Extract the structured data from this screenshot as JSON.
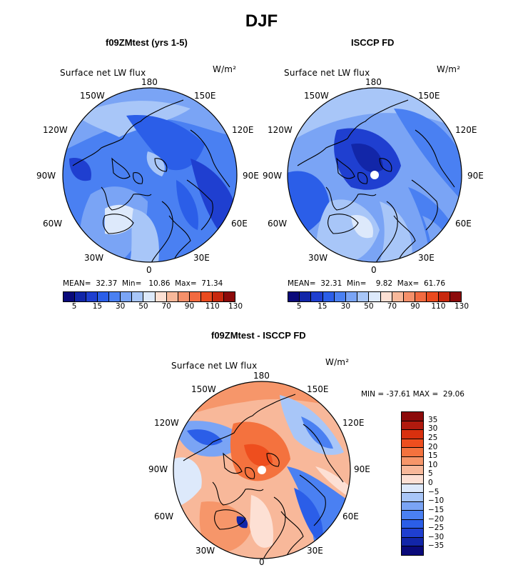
{
  "title": "DJF",
  "units": "W/m²",
  "variable": "Surface net LW flux",
  "lon_labels": {
    "top": "180",
    "bottom": "0",
    "left": [
      "150W",
      "120W",
      "90W",
      "60W",
      "30W"
    ],
    "right": [
      "150E",
      "120E",
      "90E",
      "60E",
      "30E"
    ]
  },
  "panels": {
    "model": {
      "title": "f09ZMtest (yrs 1-5)",
      "stats": "MEAN=  32.37  Min=   10.86  Max=  71.34",
      "colorbar_labels": [
        "5",
        "15",
        "30",
        "50",
        "70",
        "90",
        "110",
        "130"
      ]
    },
    "obs": {
      "title": "ISCCP FD",
      "stats": "MEAN=  32.31  Min=    9.82  Max=  61.76",
      "colorbar_labels": [
        "5",
        "15",
        "30",
        "50",
        "70",
        "90",
        "110",
        "130"
      ]
    },
    "diff": {
      "title": "f09ZMtest - ISCCP FD",
      "stats": "MIN = -37.61 MAX =  29.06",
      "colorbar_labels": [
        "35",
        "30",
        "25",
        "20",
        "15",
        "10",
        "5",
        "0",
        "−5",
        "−10",
        "−15",
        "−20",
        "−25",
        "−30",
        "−35"
      ]
    }
  },
  "colors": {
    "abs_scale": [
      "#0a0a7a",
      "#1226a8",
      "#1f3fd0",
      "#2b5ee8",
      "#4a80f2",
      "#7aa4f5",
      "#a8c6f8",
      "#dde9fb",
      "#fde0d4",
      "#f8b89a",
      "#f5906a",
      "#f26a40",
      "#ea4a1e",
      "#c8280e",
      "#8c0a0a"
    ],
    "diff_scale": [
      "#8c0a0a",
      "#b01a0e",
      "#d8300e",
      "#ee4e1e",
      "#f4723e",
      "#f6966a",
      "#f8b89a",
      "#fde0d4",
      "#dde9fb",
      "#a8c6f8",
      "#7aa4f5",
      "#4a80f2",
      "#2b5ee8",
      "#1f3fd0",
      "#1226a8",
      "#0a0a7a"
    ],
    "coast": "#000000"
  }
}
